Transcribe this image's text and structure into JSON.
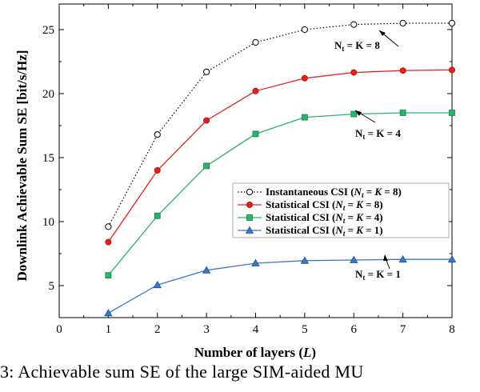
{
  "chart_data": {
    "type": "line",
    "xlabel": "Number of layers (L)",
    "ylabel": "Downlink Achievable Sum SE [bit/s/Hz]",
    "xlim": [
      0,
      8
    ],
    "ylim": [
      2.5,
      27
    ],
    "xticks": [
      "0",
      "1",
      "2",
      "3",
      "4",
      "5",
      "6",
      "7",
      "8"
    ],
    "yticks": [
      "5",
      "10",
      "15",
      "20",
      "25"
    ],
    "grid": false,
    "legend_position": "center-right",
    "x": [
      1,
      2,
      3,
      4,
      5,
      6,
      7,
      8
    ],
    "series": [
      {
        "name": "Instantaneous CSI (N_t = K = 8)",
        "color": "#000000",
        "marker": "circle",
        "dash": "dotted",
        "values": [
          9.6,
          16.8,
          21.7,
          24.0,
          25.0,
          25.4,
          25.5,
          25.5
        ]
      },
      {
        "name": "Statistical CSI (N_t = K = 8)",
        "color": "#e3211c",
        "marker": "circle-filled",
        "dash": "solid",
        "values": [
          8.4,
          14.0,
          17.9,
          20.2,
          21.2,
          21.65,
          21.8,
          21.85
        ]
      },
      {
        "name": "Statistical CSI (N_t = K = 4)",
        "color": "#2ab36a",
        "marker": "square",
        "dash": "solid",
        "values": [
          5.8,
          10.45,
          14.35,
          16.85,
          18.15,
          18.4,
          18.5,
          18.5
        ]
      },
      {
        "name": "Statistical CSI (N_t = K = 1)",
        "color": "#3a78c9",
        "marker": "triangle",
        "dash": "solid",
        "values": [
          2.85,
          5.05,
          6.2,
          6.75,
          6.95,
          7.0,
          7.05,
          7.05
        ]
      }
    ],
    "annotations": [
      "N_t = K = 8",
      "N_t = K = 4",
      "N_t = K = 1"
    ]
  },
  "caption": "3: Achievable sum SE of the large SIM-aided MU"
}
